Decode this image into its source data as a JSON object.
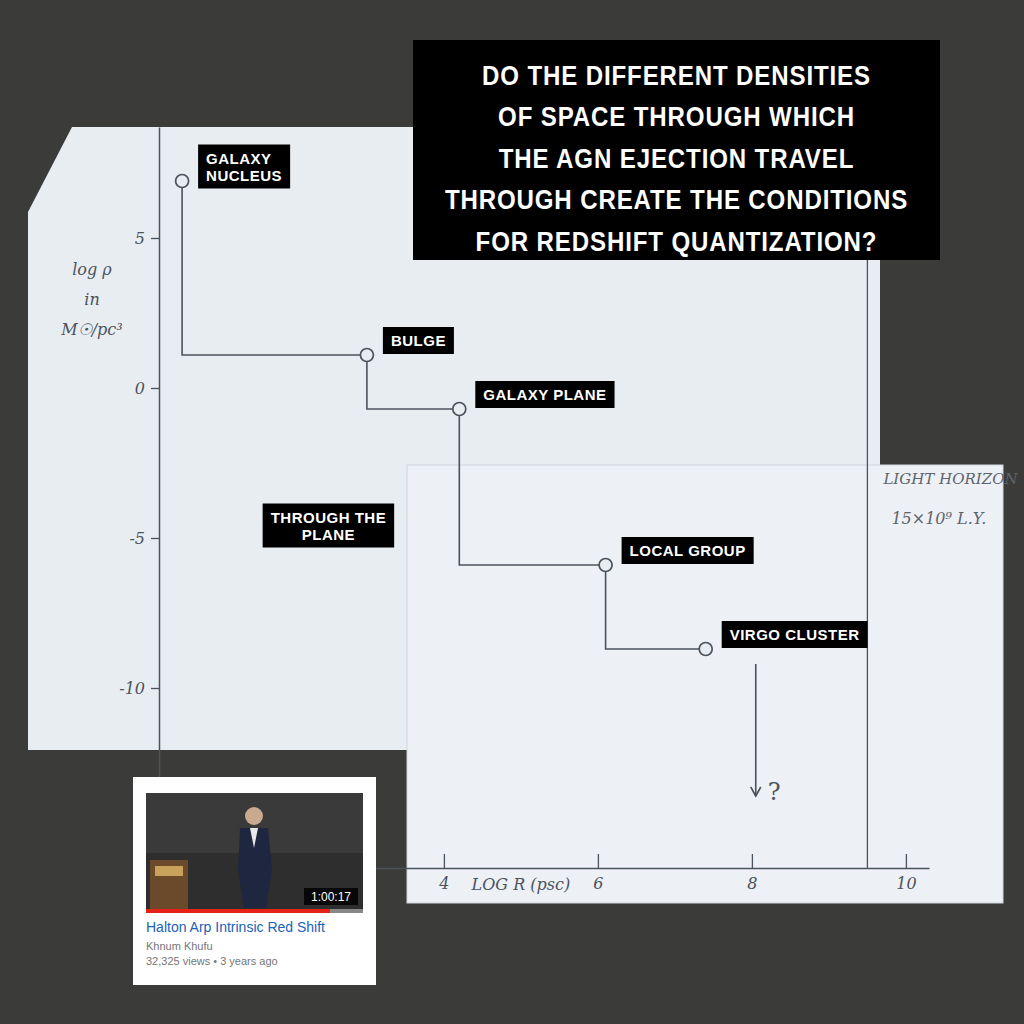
{
  "chart_data": {
    "type": "line",
    "title": "DO THE DIFFERENT DENSITIES\nOF SPACE THROUGH WHICH\nTHE AGN EJECTION TRAVEL\nTHROUGH CREATE THE CONDITIONS\nFOR REDSHIFT QUANTIZATION?",
    "x_label": "LOG R (psc)",
    "y_label": "log ρ\nin\nM☉/pc³",
    "x": [
      0.6,
      3.0,
      4.2,
      6.1,
      7.4
    ],
    "values": [
      6.9,
      1.1,
      -0.7,
      -5.9,
      -8.7
    ],
    "point_labels": [
      "GALAXY\nNUCLEUS",
      "BULGE",
      "GALAXY PLANE",
      "LOCAL GROUP",
      "VIRGO CLUSTER"
    ],
    "line_style": "step",
    "marker": "circle",
    "xlim": [
      0.3,
      10.3
    ],
    "xticks": [
      4,
      6,
      8,
      10
    ],
    "ylim": [
      -16,
      8.7
    ],
    "yticks": [
      -10,
      -5,
      0,
      5
    ],
    "annotations": [
      {
        "text": "THROUGH THE\nPLANE",
        "x": 2.5,
        "y": -4.6
      }
    ],
    "reference_line": {
      "x": 9.5,
      "label": "LIGHT HORIZON",
      "note": "15×10⁹ L.Y."
    },
    "arrow": {
      "x": 8.05,
      "from": -9.2,
      "to": -13.6,
      "label": "?"
    }
  },
  "video_card": {
    "title": "Halton Arp Intrinsic Red Shift",
    "channel": "Khnum Khufu",
    "meta": "32,325 views • 3 years ago",
    "duration": "1:00:17"
  }
}
